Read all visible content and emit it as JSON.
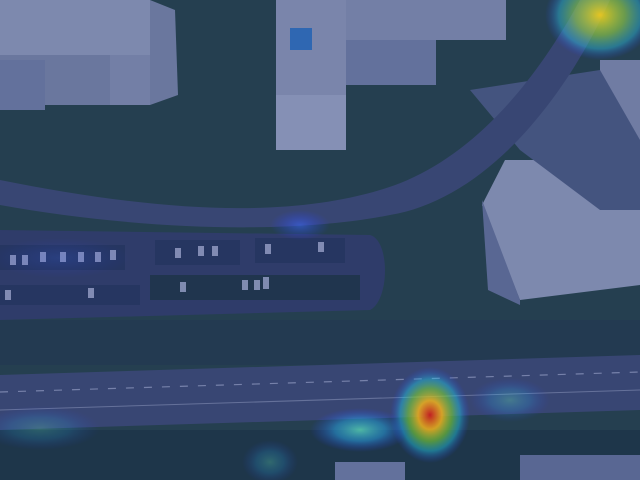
{
  "scene": {
    "description_kind": "aerial-photo-with-heatmap-overlay",
    "colors": {
      "base_tint": "#1d2f5a",
      "road": "#4a5566",
      "road_edge": "#6a7686",
      "vegetation": "#2b4a2e",
      "vegetation_dark": "#1f3a25",
      "building_roof": "#b9c0c6",
      "building_roof_alt": "#9aa3ab",
      "building_facade": "#8f9aa8",
      "parking_lot": "#3a4557",
      "lane_marking": "#d8dde4",
      "heat_low": "#2a3cff",
      "heat_mid": "#22d0e6",
      "heat_high": "#f4d21c",
      "heat_peak": "#e0261b"
    },
    "heat_spots": [
      {
        "label": "hotspot-top-right",
        "intensity": 0.95
      },
      {
        "label": "hotspot-road-center",
        "intensity": 1.0
      },
      {
        "label": "hotspot-road-right",
        "intensity": 0.45
      },
      {
        "label": "hotspot-bottom-left-road",
        "intensity": 0.3
      },
      {
        "label": "hotspot-bottom-center",
        "intensity": 0.4
      },
      {
        "label": "hotspot-parking-left",
        "intensity": 0.3
      }
    ]
  }
}
